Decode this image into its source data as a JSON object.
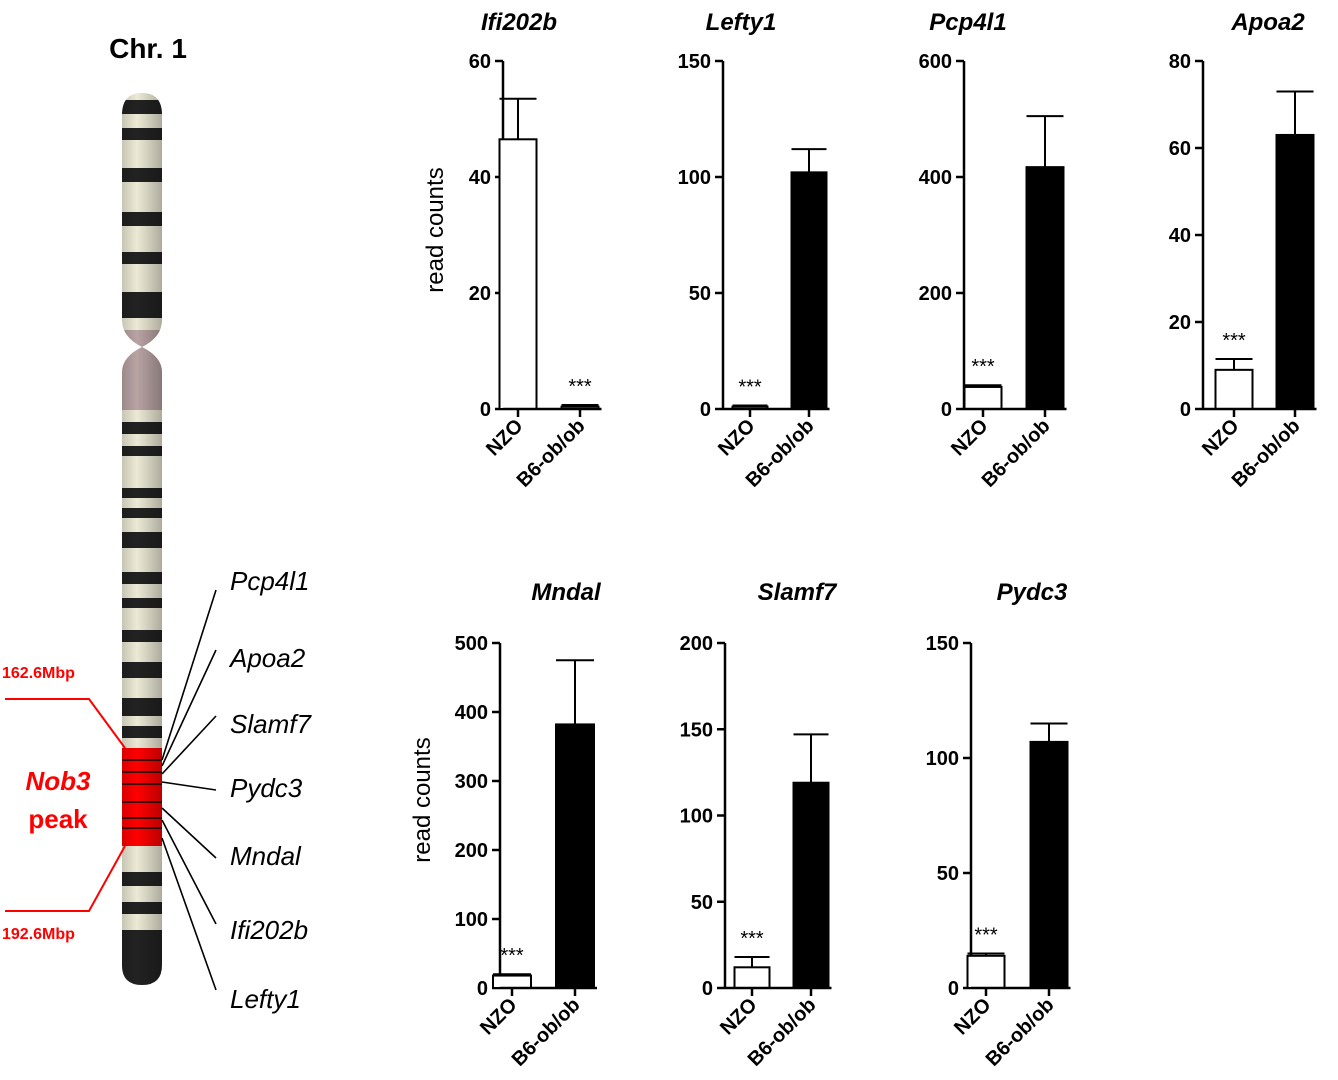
{
  "chromosome": {
    "title": "Chr. 1",
    "region_name": "Nob3",
    "region_word": "peak",
    "start_label": "162.6Mbp",
    "end_label": "192.6Mbp",
    "genes": [
      "Pcp4l1",
      "Apoa2",
      "Slamf7",
      "Pydc3",
      "Mndal",
      "Ifi202b",
      "Lefty1"
    ],
    "colors": {
      "region": "#ff0000",
      "band": "#222222",
      "centromere": "#b8a3a3",
      "light": "#ece9d5"
    }
  },
  "chart_data": [
    {
      "type": "bar",
      "title": "Ifi202b",
      "ylabel": "read counts",
      "categories": [
        "NZO",
        "B6-ob/ob"
      ],
      "values": [
        46.5,
        0.4
      ],
      "errors": [
        7.0,
        0.3
      ],
      "ylim": [
        0,
        60
      ],
      "yticks": [
        0,
        20,
        40,
        60
      ],
      "significance": [
        "",
        "***"
      ],
      "colors": [
        "#ffffff",
        "#ffffff"
      ]
    },
    {
      "type": "bar",
      "title": "Lefty1",
      "ylabel": "",
      "categories": [
        "NZO",
        "B6-ob/ob"
      ],
      "values": [
        1.0,
        102
      ],
      "errors": [
        0.5,
        10
      ],
      "ylim": [
        0,
        150
      ],
      "yticks": [
        0,
        50,
        100,
        150
      ],
      "significance": [
        "***",
        ""
      ],
      "colors": [
        "#ffffff",
        "#000000"
      ]
    },
    {
      "type": "bar",
      "title": "Pcp4l1",
      "ylabel": "",
      "categories": [
        "NZO",
        "B6-ob/ob"
      ],
      "values": [
        38,
        417
      ],
      "errors": [
        3,
        88
      ],
      "ylim": [
        0,
        600
      ],
      "yticks": [
        0,
        200,
        400,
        600
      ],
      "significance": [
        "***",
        ""
      ],
      "colors": [
        "#ffffff",
        "#000000"
      ]
    },
    {
      "type": "bar",
      "title": "Apoa2",
      "ylabel": "",
      "categories": [
        "NZO",
        "B6-ob/ob"
      ],
      "values": [
        9,
        63
      ],
      "errors": [
        2.5,
        10
      ],
      "ylim": [
        0,
        80
      ],
      "yticks": [
        0,
        20,
        40,
        60,
        80
      ],
      "significance": [
        "***",
        ""
      ],
      "colors": [
        "#ffffff",
        "#000000"
      ]
    },
    {
      "type": "bar",
      "title": "Mndal",
      "ylabel": "read counts",
      "categories": [
        "NZO",
        "B6-ob/ob"
      ],
      "values": [
        18,
        382
      ],
      "errors": [
        2,
        93
      ],
      "ylim": [
        0,
        500
      ],
      "yticks": [
        0,
        100,
        200,
        300,
        400,
        500
      ],
      "significance": [
        "***",
        ""
      ],
      "colors": [
        "#ffffff",
        "#000000"
      ]
    },
    {
      "type": "bar",
      "title": "Slamf7",
      "ylabel": "",
      "categories": [
        "NZO",
        "B6-ob/ob"
      ],
      "values": [
        12,
        119
      ],
      "errors": [
        6,
        28
      ],
      "ylim": [
        0,
        200
      ],
      "yticks": [
        0,
        50,
        100,
        150,
        200
      ],
      "significance": [
        "***",
        ""
      ],
      "colors": [
        "#ffffff",
        "#000000"
      ]
    },
    {
      "type": "bar",
      "title": "Pydc3",
      "ylabel": "",
      "categories": [
        "NZO",
        "B6-ob/ob"
      ],
      "values": [
        14,
        107
      ],
      "errors": [
        1,
        8
      ],
      "ylim": [
        0,
        150
      ],
      "yticks": [
        0,
        50,
        100,
        150
      ],
      "significance": [
        "***",
        ""
      ],
      "colors": [
        "#ffffff",
        "#000000"
      ]
    }
  ]
}
